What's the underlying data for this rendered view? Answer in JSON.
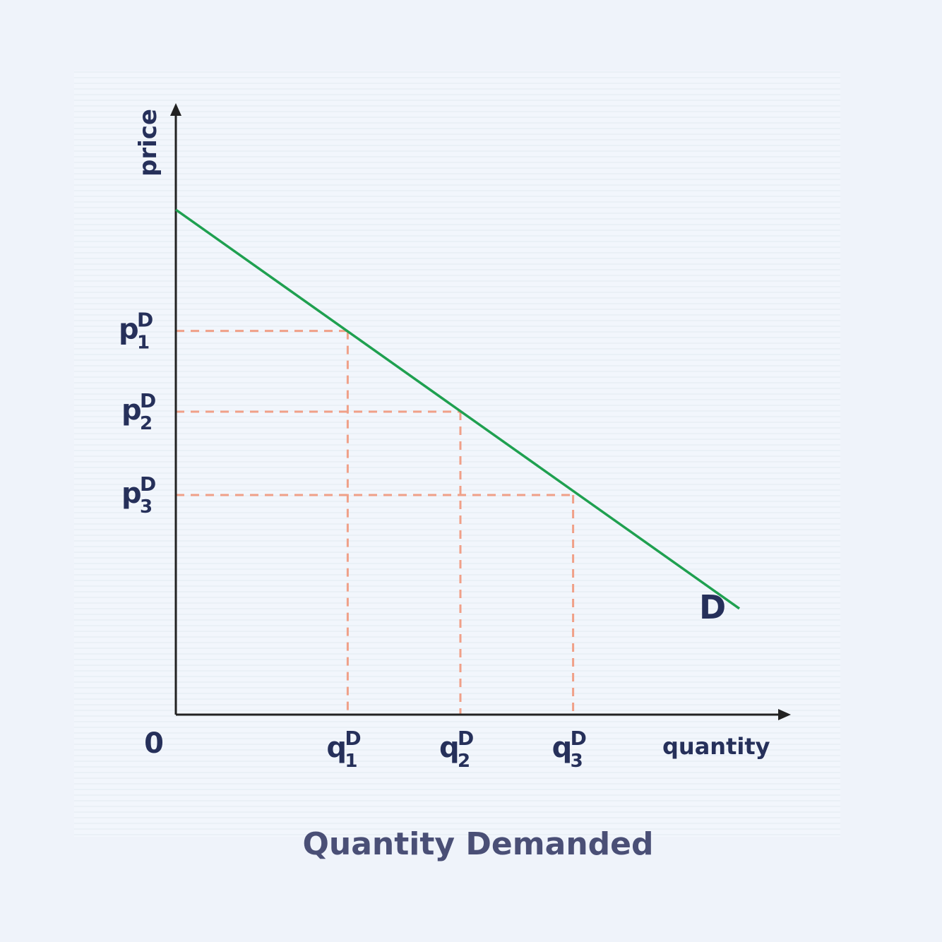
{
  "chart_data": {
    "type": "line",
    "title": "Quantity Demanded",
    "xlabel": "quantity",
    "ylabel": "price",
    "origin_label": "0",
    "grid": false,
    "colors": {
      "curve": "#1fa050",
      "guide": "#f0a088",
      "axis": "#222222",
      "text": "#26305a",
      "caption": "#4a4f76",
      "panel": "#f1f6fb",
      "page": "#eff3fa"
    },
    "xlim": [
      0,
      10
    ],
    "ylim": [
      0,
      10
    ],
    "series": [
      {
        "name": "D",
        "points": [
          [
            0,
            10
          ],
          [
            10,
            2.1
          ]
        ]
      }
    ],
    "points": [
      {
        "q": 3.05,
        "p": 7.6,
        "q_label": {
          "base": "q",
          "sub": "1",
          "sup": "D"
        },
        "p_label": {
          "base": "p",
          "sub": "1",
          "sup": "D"
        }
      },
      {
        "q": 5.05,
        "p": 6.0,
        "q_label": {
          "base": "q",
          "sub": "2",
          "sup": "D"
        },
        "p_label": {
          "base": "p",
          "sub": "2",
          "sup": "D"
        }
      },
      {
        "q": 7.05,
        "p": 4.35,
        "q_label": {
          "base": "q",
          "sub": "3",
          "sup": "D"
        },
        "p_label": {
          "base": "p",
          "sub": "3",
          "sup": "D"
        }
      }
    ]
  }
}
